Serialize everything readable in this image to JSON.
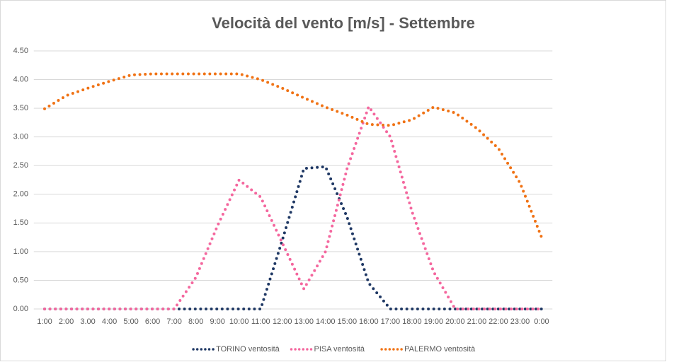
{
  "chart_data": {
    "type": "line",
    "title": "Velocità del vento [m/s] - Settembre",
    "categories": [
      "1:00",
      "2:00",
      "3.00",
      "4:00",
      "5:00",
      "6:00",
      "7:00",
      "8:00",
      "9:00",
      "10:00",
      "11:00",
      "12:00",
      "13:00",
      "14:00",
      "15:00",
      "16:00",
      "17:00",
      "18:00",
      "19:00",
      "20:00",
      "21:00",
      "22:00",
      "23:00",
      "0:00"
    ],
    "series": [
      {
        "name": "TORINO ventosità",
        "color": "#1f3864",
        "values": [
          0,
          0,
          0,
          0,
          0,
          0,
          0,
          0,
          0,
          0,
          0,
          1.2,
          2.45,
          2.48,
          1.6,
          0.45,
          0,
          0,
          0,
          0,
          0,
          0,
          0,
          0
        ]
      },
      {
        "name": "PISA ventosità",
        "color": "#f4679e",
        "values": [
          0,
          0,
          0,
          0,
          0,
          0,
          0,
          0.55,
          1.45,
          2.25,
          1.95,
          1.15,
          0.35,
          1.0,
          2.45,
          3.53,
          3.0,
          1.7,
          0.65,
          0,
          0,
          0,
          0,
          0
        ]
      },
      {
        "name": "PALERMO ventosità",
        "color": "#f07214",
        "values": [
          3.49,
          3.72,
          3.85,
          3.97,
          4.08,
          4.1,
          4.1,
          4.1,
          4.1,
          4.1,
          4.0,
          3.85,
          3.68,
          3.52,
          3.38,
          3.22,
          3.2,
          3.3,
          3.52,
          3.42,
          3.15,
          2.8,
          2.2,
          1.25
        ]
      }
    ],
    "ylim": [
      0,
      4.5
    ],
    "yticks": [
      {
        "value": 0,
        "label": "0.00"
      },
      {
        "value": 0.5,
        "label": "0.50"
      },
      {
        "value": 1,
        "label": "1.00"
      },
      {
        "value": 1.5,
        "label": "1.50"
      },
      {
        "value": 2,
        "label": "2.00"
      },
      {
        "value": 2.5,
        "label": "2.50"
      },
      {
        "value": 3,
        "label": "3.00"
      },
      {
        "value": 3.5,
        "label": "3.50"
      },
      {
        "value": 4,
        "label": "4.00"
      },
      {
        "value": 4.5,
        "label": "4.50"
      }
    ],
    "grid": true,
    "legend": "bottom"
  }
}
